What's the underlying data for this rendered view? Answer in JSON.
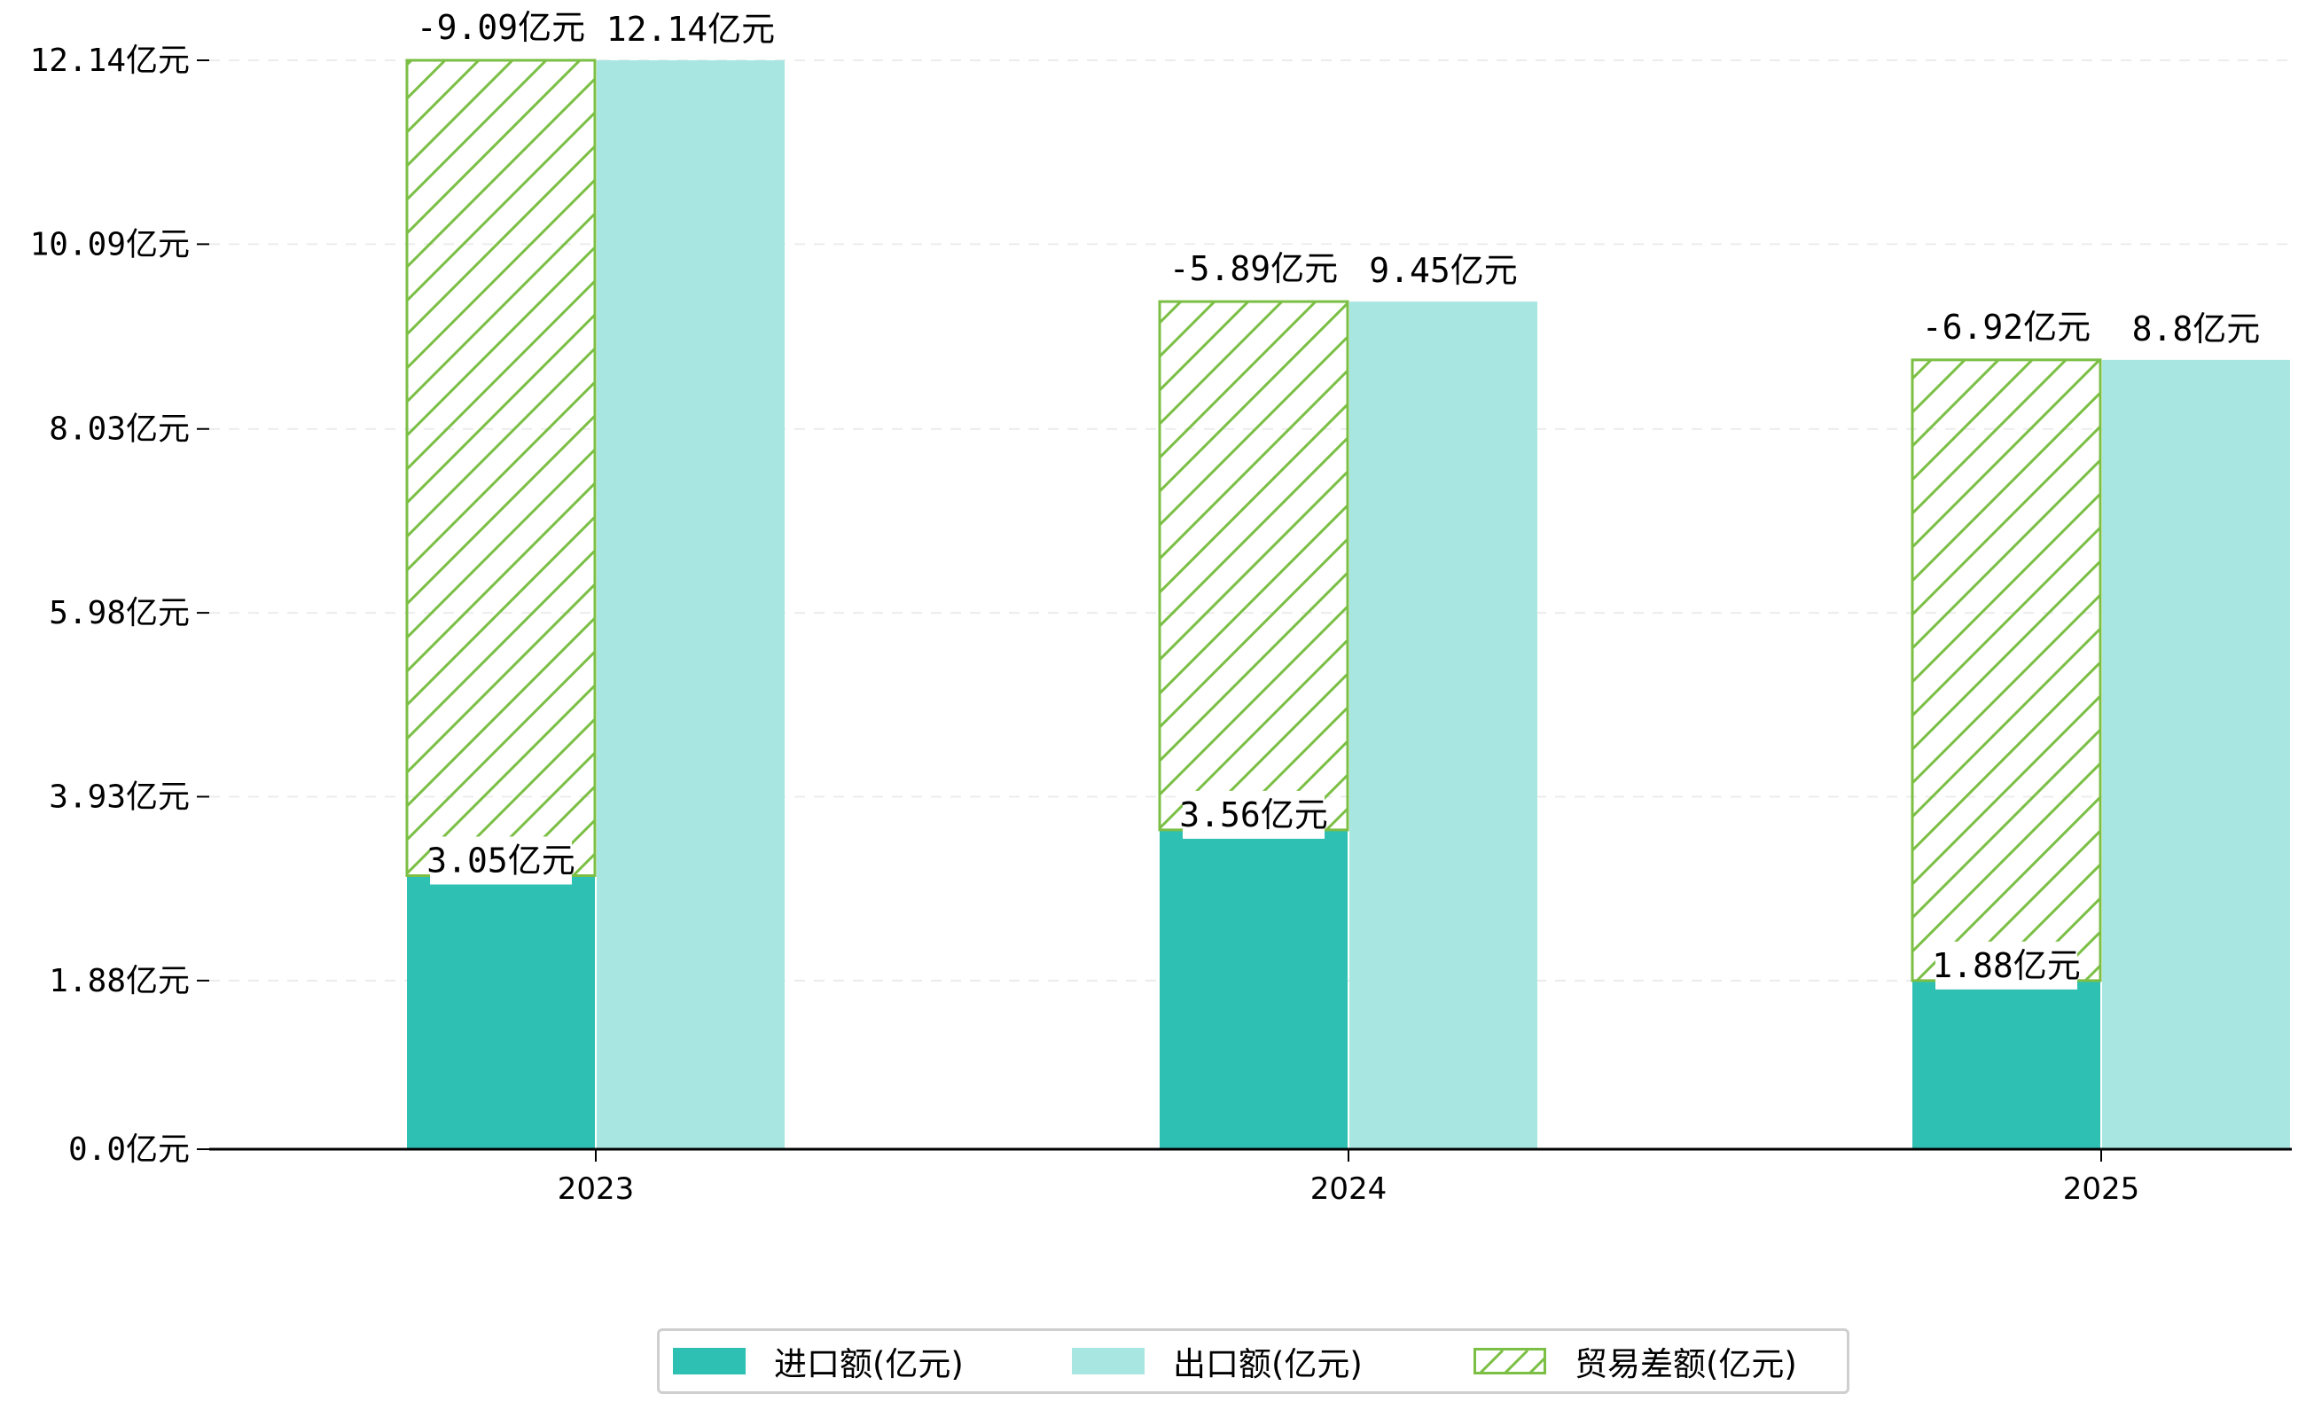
{
  "chart_data": {
    "type": "bar",
    "categories": [
      "2023",
      "2024",
      "2025"
    ],
    "series": [
      {
        "name": "进口额(亿元)",
        "values": [
          3.05,
          3.56,
          1.88
        ],
        "color": "#2ec1b3"
      },
      {
        "name": "出口额(亿元)",
        "values": [
          12.14,
          9.45,
          8.8
        ],
        "color": "#a8e7e1"
      },
      {
        "name": "贸易差额(亿元)",
        "values": [
          -9.09,
          -5.89,
          -6.92
        ],
        "color": "#7bbf45",
        "style": "hatched",
        "stacked_on": "进口额(亿元)"
      }
    ],
    "labels": {
      "import": [
        "3.05亿元",
        "3.56亿元",
        "1.88亿元"
      ],
      "export": [
        "12.14亿元",
        "9.45亿元",
        "8.8亿元"
      ],
      "balance": [
        "-9.09亿元",
        "-5.89亿元",
        "-6.92亿元"
      ]
    },
    "yticks": [
      0.0,
      1.88,
      3.93,
      5.98,
      8.03,
      10.09,
      12.14
    ],
    "ytick_labels": [
      "0.0亿元",
      "1.88亿元",
      "3.93亿元",
      "5.98亿元",
      "8.03亿元",
      "10.09亿元",
      "12.14亿元"
    ],
    "ylim": [
      0,
      12.14
    ],
    "grid": "horizontal dashed",
    "legend_position": "bottom-center"
  },
  "legend": {
    "items": [
      "进口额(亿元)",
      "出口额(亿元)",
      "贸易差额(亿元)"
    ]
  }
}
